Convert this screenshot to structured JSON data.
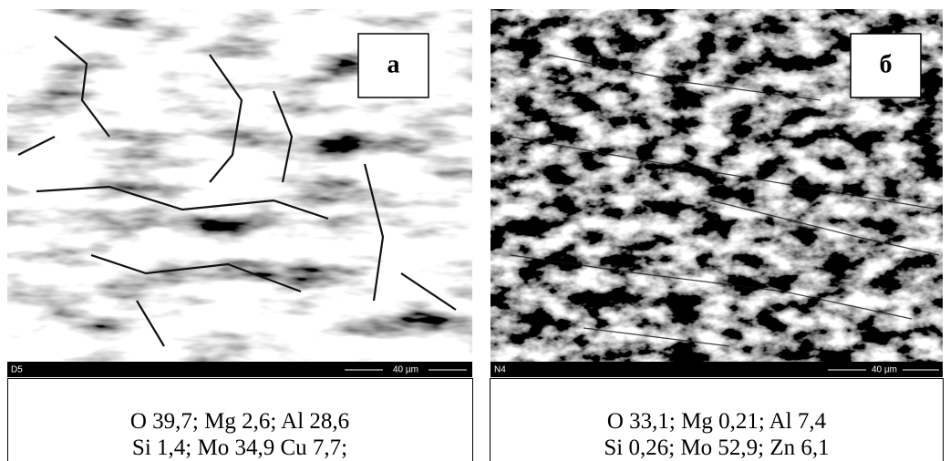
{
  "panels": [
    {
      "label": "а",
      "sample": "D5",
      "scale": "40 µm",
      "composition": [
        "O 39,7; Mg 2,6; Al 28,6",
        "Si 1,4; Mo 34,9 Cu 7,7;"
      ]
    },
    {
      "label": "б",
      "sample": "N4",
      "scale": "40 µm",
      "composition": [
        "O 33,1; Mg 0,21; Al 7,4",
        "Si 0,26; Mo 52,9; Zn 6,1"
      ]
    }
  ]
}
